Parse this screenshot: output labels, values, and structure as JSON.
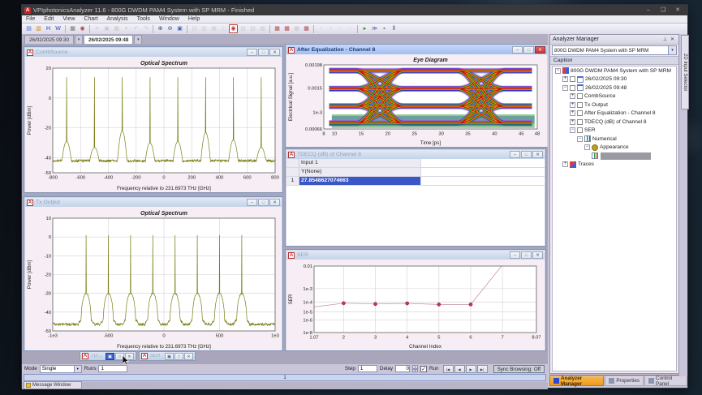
{
  "window": {
    "title": "VPIphotonicsAnalyzer 11.6 - 800G DWDM PAM4 System with SP MRM - Finished",
    "app_icon": "A"
  },
  "menu": {
    "items": [
      "File",
      "Edit",
      "View",
      "Chart",
      "Analysis",
      "Tools",
      "Window",
      "Help"
    ]
  },
  "toolbar": {
    "groups": [
      [
        {
          "n": "new-file",
          "g": "▤",
          "c": "#4a6ad0"
        },
        {
          "n": "open-folder",
          "g": "▥",
          "c": "#d08a20"
        },
        {
          "n": "save",
          "g": "H",
          "c": "#2a3ac0"
        },
        {
          "n": "workspace",
          "g": "W",
          "c": "#2a3ac0"
        }
      ],
      [
        {
          "n": "print",
          "g": "▦",
          "c": "#777"
        },
        {
          "n": "snapshot",
          "g": "◉",
          "c": "#b04040"
        }
      ],
      [
        {
          "n": "cut",
          "g": "✕",
          "c": "#999",
          "dis": true
        },
        {
          "n": "copy",
          "g": "▣",
          "c": "#999",
          "dis": true
        },
        {
          "n": "paste",
          "g": "▦",
          "c": "#999",
          "dis": true
        },
        {
          "n": "delete",
          "g": "×",
          "c": "#b66",
          "dis": true
        },
        {
          "n": "undo",
          "g": "↶",
          "c": "#69c",
          "dis": true
        },
        {
          "n": "redo",
          "g": "↷",
          "c": "#69c",
          "dis": true
        }
      ],
      [
        {
          "n": "zoom-in",
          "g": "⊕",
          "c": "#334a7a"
        },
        {
          "n": "zoom-out",
          "g": "⊖",
          "c": "#334a7a"
        },
        {
          "n": "zoom-fit",
          "g": "▣",
          "c": "#4466aa"
        }
      ],
      [
        {
          "n": "chart-xy",
          "g": "▤",
          "c": "#aaa",
          "dis": true
        },
        {
          "n": "chart-2d",
          "g": "▥",
          "c": "#aaa",
          "dis": true
        },
        {
          "n": "chart-3d",
          "g": "▦",
          "c": "#aaa",
          "dis": true
        },
        {
          "n": "chart-polar",
          "g": "◫",
          "c": "#aaa",
          "dis": true
        },
        {
          "n": "chart-eye",
          "g": "◉",
          "c": "#c03030",
          "act": true
        },
        {
          "n": "chart-hist",
          "g": "▨",
          "c": "#aaa",
          "dis": true
        },
        {
          "n": "chart-table",
          "g": "▧",
          "c": "#aaa",
          "dis": true
        },
        {
          "n": "chart-matrix",
          "g": "▩",
          "c": "#aaa",
          "dis": true
        }
      ],
      [
        {
          "n": "table-export",
          "g": "▦",
          "c": "#b05050"
        },
        {
          "n": "table-copy",
          "g": "▦",
          "c": "#b05050"
        },
        {
          "n": "table-save",
          "g": "▦",
          "c": "#999",
          "dis": true
        },
        {
          "n": "table-open",
          "g": "▦",
          "c": "#b05050"
        }
      ],
      [
        {
          "n": "layout-a",
          "g": "▫",
          "c": "#999",
          "dis": true
        },
        {
          "n": "layout-b",
          "g": "▫",
          "c": "#999",
          "dis": true
        },
        {
          "n": "layout-c",
          "g": "▫",
          "c": "#999",
          "dis": true
        },
        {
          "n": "layout-d",
          "g": "▫",
          "c": "#999",
          "dis": true
        }
      ],
      [
        {
          "n": "run",
          "g": "▸",
          "c": "#2a7a2a"
        },
        {
          "n": "run-all",
          "g": "≫",
          "c": "#4466aa"
        },
        {
          "n": "schedule",
          "g": "▪",
          "c": "#4466aa"
        },
        {
          "n": "pause",
          "g": "‖",
          "c": "#223a8a"
        }
      ]
    ]
  },
  "result_tabs": [
    {
      "label": "26/02/2025 09:30",
      "active": false
    },
    {
      "label": "26/02/2025 09:48",
      "active": true
    }
  ],
  "windows": {
    "comb": {
      "title": "CombSource"
    },
    "tx": {
      "title": "Tx Output"
    },
    "eye": {
      "title": "After Equalization - Channel 8"
    },
    "tdecq": {
      "title": "TDECQ (dB) of Channel 8"
    },
    "ser": {
      "title": "SER"
    }
  },
  "minimized": [
    {
      "label": "TD..."
    },
    {
      "label": "SER"
    }
  ],
  "dock": {
    "title": "Analyzer Manager",
    "dropdown_value": "800G DWDM PAM4 System with SP MRM",
    "caption_header": "Caption",
    "tree": [
      {
        "d": 0,
        "e": "-",
        "icon": "app",
        "label": "800G DWDM PAM4 System with SP MRM"
      },
      {
        "d": 1,
        "e": "+",
        "cb": true,
        "icon": "sheet",
        "label": "26/02/2025 09:30"
      },
      {
        "d": 1,
        "e": "-",
        "cb": true,
        "icon": "sheet",
        "label": "26/02/2025 09:48"
      },
      {
        "d": 2,
        "e": "+",
        "cb": true,
        "label": "CombSource"
      },
      {
        "d": 2,
        "e": "+",
        "cb": true,
        "label": "Tx Output"
      },
      {
        "d": 2,
        "e": "+",
        "cb": true,
        "label": "After Equalization - Channel 8"
      },
      {
        "d": 2,
        "e": "+",
        "cb": true,
        "label": "TDECQ (dB) of Channel 8"
      },
      {
        "d": 2,
        "e": "-",
        "cb": true,
        "label": "SER"
      },
      {
        "d": 3,
        "e": "-",
        "icon": "chart",
        "label": "Numerical"
      },
      {
        "d": 4,
        "e": "-",
        "icon": "gear",
        "label": "Appearance"
      },
      {
        "d": 5,
        "icon": "chart",
        "label": "",
        "selected": true
      },
      {
        "d": 1,
        "e": "+",
        "icon": "traces",
        "label": "Traces"
      }
    ],
    "footer_tabs": [
      {
        "label": "Analyzer Manager",
        "active": true
      },
      {
        "label": "Properties",
        "active": false
      },
      {
        "label": "Control Panel",
        "active": false
      }
    ]
  },
  "side_tab": "2D Input Selector",
  "bottom": {
    "mode_label": "Mode",
    "mode_value": "Single",
    "runs_label": "Runs",
    "runs_value": "1",
    "step_label": "Step",
    "step_value": "1",
    "delay_label": "Delay",
    "delay_value": "0",
    "run_label": "Run",
    "run_check": "✓",
    "playback": [
      "|◀",
      "◀",
      "▶",
      "▶|"
    ],
    "sync_label": "Sync Browsing: Off",
    "progress_value": "1",
    "message_window_label": "Message Window"
  },
  "chart_data": [
    {
      "type": "line",
      "title": "Optical Spectrum",
      "xlabel": "Frequency relative to 231.6973 THz [GHz]",
      "ylabel": "Power [dBm]",
      "xlim": [
        -800,
        800
      ],
      "ylim": [
        -50,
        20
      ],
      "xticks": [
        {
          "v": -800
        },
        {
          "v": -600
        },
        {
          "v": -400
        },
        {
          "v": -200
        },
        {
          "v": 0
        },
        {
          "v": 200
        },
        {
          "v": 400
        },
        {
          "v": 600
        },
        {
          "v": 800
        }
      ],
      "yticks": [
        {
          "v": 20
        },
        {
          "v": 0
        },
        {
          "v": -20
        },
        {
          "v": -40
        },
        {
          "v": -50
        }
      ],
      "grid": true,
      "color": "#7b7f17",
      "synth": {
        "kind": "comb",
        "baseline": -42,
        "noise": 1.6,
        "step": 2,
        "peak_power": 14,
        "pedestal_halfwidth": 34,
        "peaks": [
          {
            "f": -700,
            "pedestal": -29
          },
          {
            "f": -500,
            "pedestal": -33
          },
          {
            "f": -300,
            "pedestal": -22
          },
          {
            "f": -100,
            "pedestal": -30
          },
          {
            "f": 100,
            "pedestal": -29
          },
          {
            "f": 300,
            "pedestal": -23
          },
          {
            "f": 500,
            "pedestal": -28
          },
          {
            "f": 700,
            "pedestal": -33
          }
        ]
      }
    },
    {
      "type": "line",
      "title": "Optical Spectrum",
      "xlabel": "Frequency relative to 231.6973 THz [GHz]",
      "ylabel": "Power [dBm]",
      "xlim": [
        -1000,
        1000
      ],
      "ylim": [
        -50,
        10
      ],
      "xticks": [
        {
          "v": -1000,
          "label": "-1e3"
        },
        {
          "v": -500
        },
        {
          "v": 0
        },
        {
          "v": 500
        },
        {
          "v": 1000,
          "label": "1e3"
        }
      ],
      "yticks": [
        {
          "v": 10
        },
        {
          "v": 0
        },
        {
          "v": -10
        },
        {
          "v": -20
        },
        {
          "v": -30
        },
        {
          "v": -40
        },
        {
          "v": -50
        }
      ],
      "grid": true,
      "color": "#7b7f17",
      "synth": {
        "kind": "wdm",
        "floor": -46.5,
        "noise": 1.4,
        "step": 2.5,
        "channels": [
          -700,
          -500,
          -300,
          -100,
          100,
          300,
          500,
          700
        ],
        "lobe_top": -30,
        "lobe_halfwidth": 46,
        "shoulder_top": -43.5,
        "shoulder_halfwidth": 68,
        "carrier_power": 1
      }
    },
    {
      "type": "eye",
      "title": "Eye Diagram",
      "xlabel": "Time [ps]",
      "ylabel": "Electrical Signal [a.u.]",
      "xlim": [
        8,
        48
      ],
      "ylim": [
        0.00066,
        0.00198
      ],
      "xticks": [
        {
          "v": 8
        },
        {
          "v": 10
        },
        {
          "v": 15
        },
        {
          "v": 20
        },
        {
          "v": 25
        },
        {
          "v": 30
        },
        {
          "v": 35
        },
        {
          "v": 40
        },
        {
          "v": 45
        },
        {
          "v": 48
        }
      ],
      "yticks": [
        {
          "v": 0.00198,
          "label": "0.00198"
        },
        {
          "v": 0.0015,
          "label": "0.0015"
        },
        {
          "v": 0.001,
          "label": "1e-3"
        },
        {
          "v": 0.00066,
          "label": "0.00066"
        }
      ],
      "grid": false,
      "eye": {
        "levels": [
          0.00078,
          0.00113,
          0.00149,
          0.00186
        ],
        "boundaries": [
          18.5,
          37.5
        ],
        "half_ui": 9.5,
        "half_transition": 4.5,
        "span": [
          9.5,
          47.5
        ],
        "layers": [
          {
            "color": "#b44fd0",
            "w": 7,
            "o": 0.5
          },
          {
            "color": "#2631c8",
            "w": 5,
            "o": 0.6
          },
          {
            "color": "#17a01e",
            "w": 3.4,
            "o": 0.85
          },
          {
            "color": "#d6d400",
            "w": 2.1,
            "o": 0.9
          },
          {
            "color": "#d01010",
            "w": 1.1,
            "o": 1
          }
        ],
        "noise_band": {
          "y0": 0.00068,
          "y1": 0.00096,
          "colors": [
            "#17a01e",
            "#2631c8"
          ]
        }
      }
    },
    {
      "type": "line",
      "title": "",
      "xlabel": "Channel Index",
      "ylabel": "SER",
      "xlim": [
        1.07,
        8.07
      ],
      "xticks": [
        {
          "v": 1.07,
          "label": "1.07"
        },
        {
          "v": 2
        },
        {
          "v": 3
        },
        {
          "v": 4
        },
        {
          "v": 5
        },
        {
          "v": 6
        },
        {
          "v": 7
        },
        {
          "v": 8.07,
          "label": "8.07"
        }
      ],
      "yscale": "custom",
      "yanchors": [
        [
          -2,
          0
        ],
        [
          -3,
          0.34
        ],
        [
          -4,
          0.54
        ],
        [
          -5,
          0.69
        ],
        [
          -6,
          0.81
        ],
        [
          -8,
          1
        ]
      ],
      "yticks": [
        {
          "v": 0.01,
          "label": "0.01"
        },
        {
          "v": 0.001,
          "label": "1e-3"
        },
        {
          "v": 0.0001,
          "label": "1e-4"
        },
        {
          "v": 1e-05,
          "label": "1e-5"
        },
        {
          "v": 1e-06,
          "label": "1e-6"
        },
        {
          "v": 1e-08,
          "label": "1e-8"
        }
      ],
      "grid": true,
      "color": "#c488a0",
      "marker_color": "#c2325a",
      "points": [
        [
          1.07,
          3.2e-05
        ],
        [
          2,
          7.5e-05
        ],
        [
          3,
          6.2e-05
        ],
        [
          4,
          7.2e-05
        ],
        [
          5,
          5.6e-05
        ],
        [
          6,
          5.6e-05
        ],
        [
          7,
          0.012
        ]
      ],
      "marker_from": 1,
      "marker_to": 5
    },
    {
      "type": "table",
      "columns": [
        "",
        "Input 1"
      ],
      "subheader": "Y(None)",
      "rows": [
        [
          "1",
          "27.8548627074663"
        ]
      ]
    }
  ]
}
